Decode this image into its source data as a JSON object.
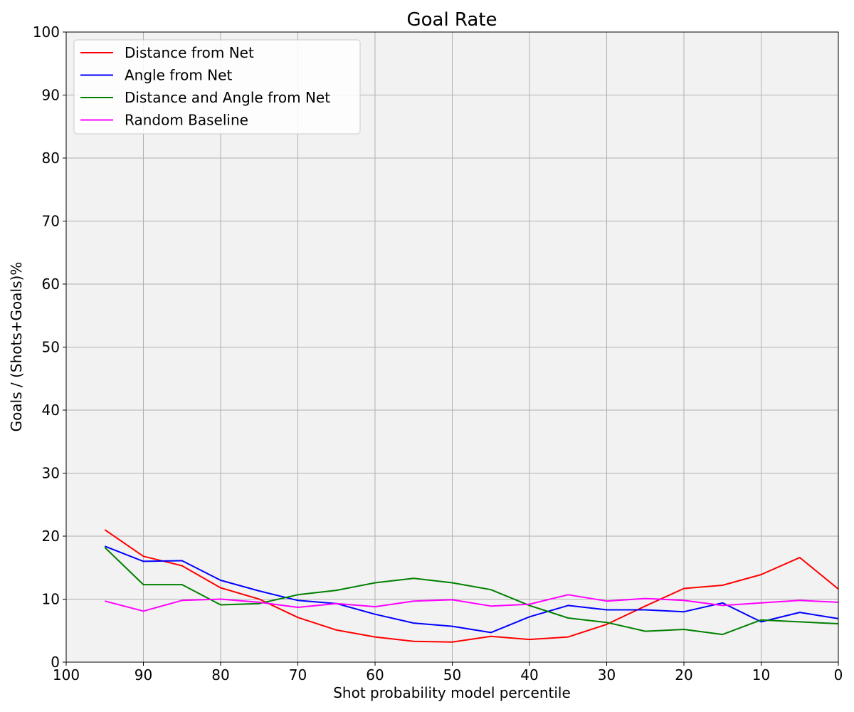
{
  "chart_data": {
    "type": "line",
    "title": "Goal Rate",
    "xlabel": "Shot probability model percentile",
    "ylabel": "Goals / (Shots+Goals)%",
    "xlim": [
      100,
      0
    ],
    "ylim": [
      0,
      100
    ],
    "x_ticks": [
      100,
      90,
      80,
      70,
      60,
      50,
      40,
      30,
      20,
      10,
      0
    ],
    "y_ticks": [
      0,
      10,
      20,
      30,
      40,
      50,
      60,
      70,
      80,
      90,
      100
    ],
    "grid": true,
    "legend_position": "top-left",
    "x": [
      95,
      90,
      85,
      80,
      75,
      70,
      65,
      60,
      55,
      50,
      45,
      40,
      35,
      30,
      25,
      20,
      15,
      10,
      5,
      0
    ],
    "series": [
      {
        "name": "Distance from Net",
        "color": "#ff0000",
        "values": [
          21.0,
          16.8,
          15.3,
          11.8,
          10.0,
          7.1,
          5.1,
          4.0,
          3.3,
          3.2,
          4.1,
          3.6,
          4.0,
          6.0,
          8.9,
          11.7,
          12.2,
          13.9,
          16.6,
          11.6
        ]
      },
      {
        "name": "Angle from Net",
        "color": "#0000ff",
        "values": [
          18.4,
          16.0,
          16.1,
          13.0,
          11.3,
          9.8,
          9.3,
          7.6,
          6.2,
          5.7,
          4.7,
          7.2,
          9.0,
          8.3,
          8.3,
          8.0,
          9.4,
          6.4,
          7.9,
          6.9
        ]
      },
      {
        "name": "Distance and Angle from Net",
        "color": "#008000",
        "values": [
          18.2,
          12.3,
          12.3,
          9.1,
          9.3,
          10.7,
          11.4,
          12.6,
          13.3,
          12.6,
          11.5,
          9.0,
          7.0,
          6.3,
          4.9,
          5.2,
          4.4,
          6.7,
          6.4,
          6.1
        ]
      },
      {
        "name": "Random Baseline",
        "color": "#ff00ff",
        "values": [
          9.7,
          8.1,
          9.8,
          10.0,
          9.5,
          8.7,
          9.3,
          8.8,
          9.7,
          9.9,
          8.9,
          9.2,
          10.7,
          9.7,
          10.1,
          9.8,
          9.0,
          9.4,
          9.8,
          9.5
        ]
      }
    ]
  },
  "colors": {
    "plot_background": "#f2f2f2",
    "grid": "#b0b0b0"
  }
}
